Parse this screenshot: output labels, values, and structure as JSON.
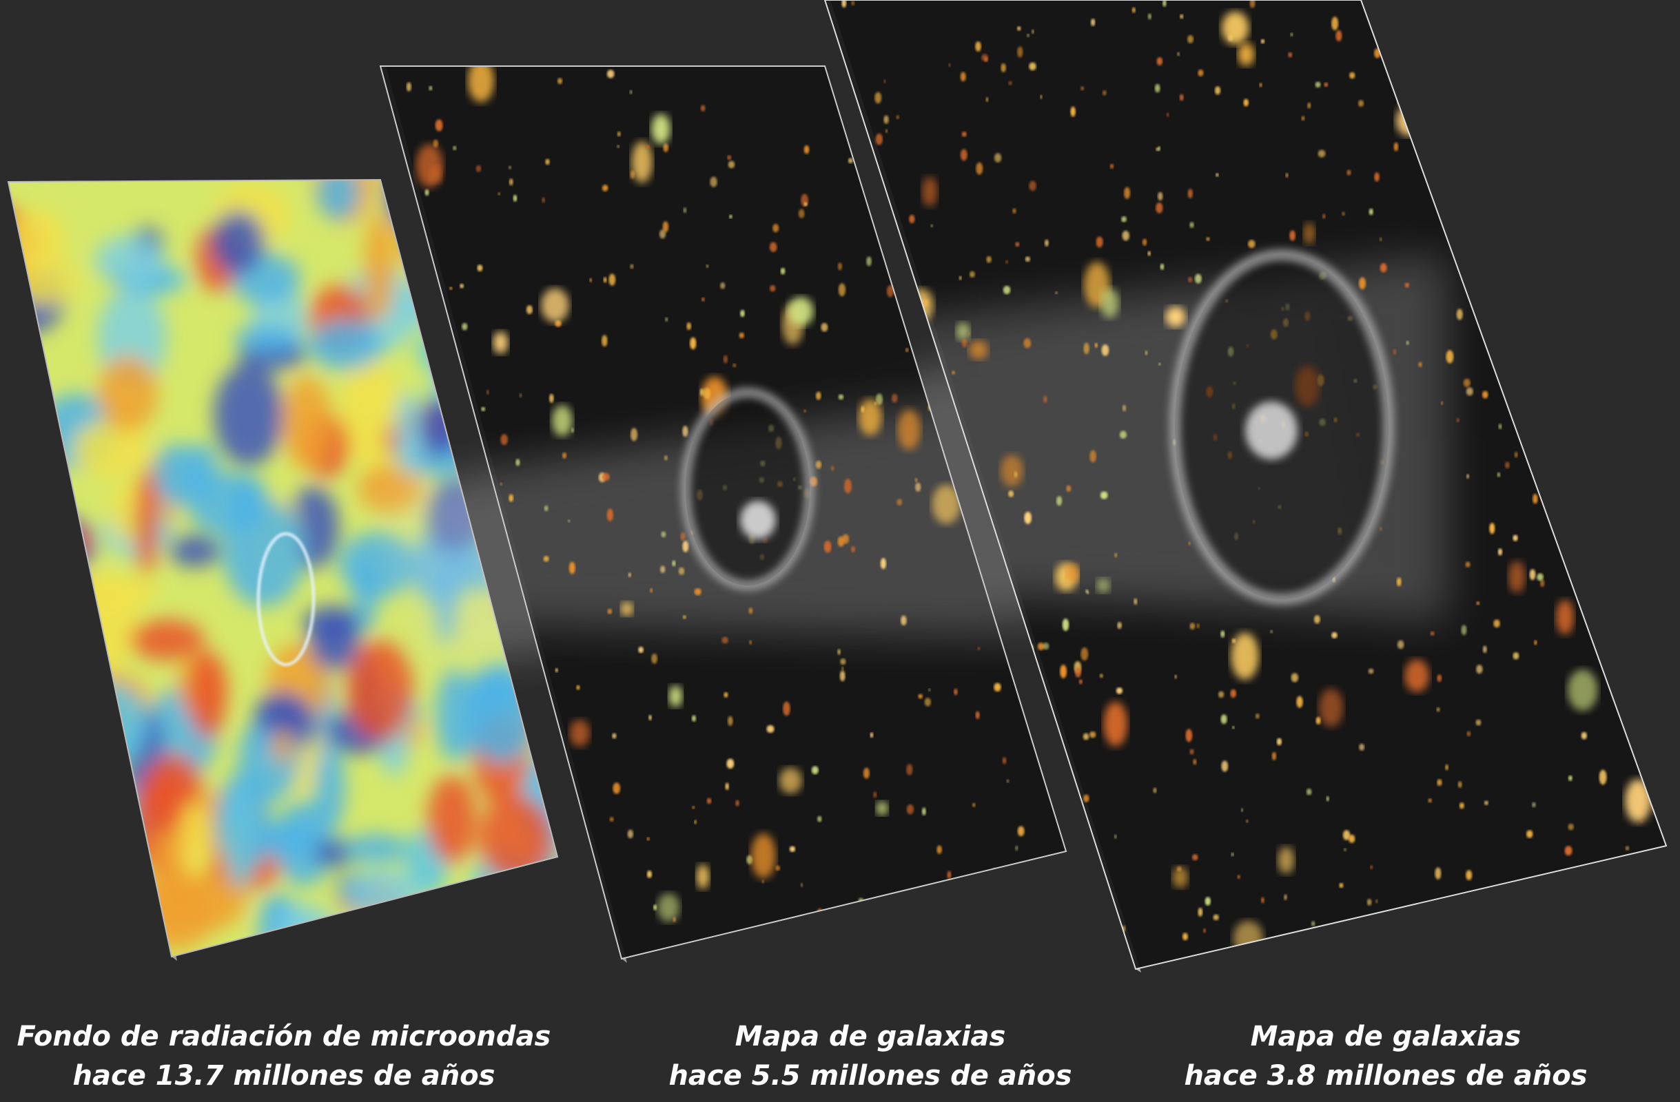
{
  "panels": [
    {
      "caption": [
        "Fondo de radiación de microondas",
        "hace 13.7 millones de años"
      ]
    },
    {
      "caption": [
        "Mapa de galaxias",
        "hace 5.5 millones de años"
      ]
    },
    {
      "caption": [
        "Mapa de galaxias",
        "hace 3.8 millones de años"
      ]
    }
  ]
}
